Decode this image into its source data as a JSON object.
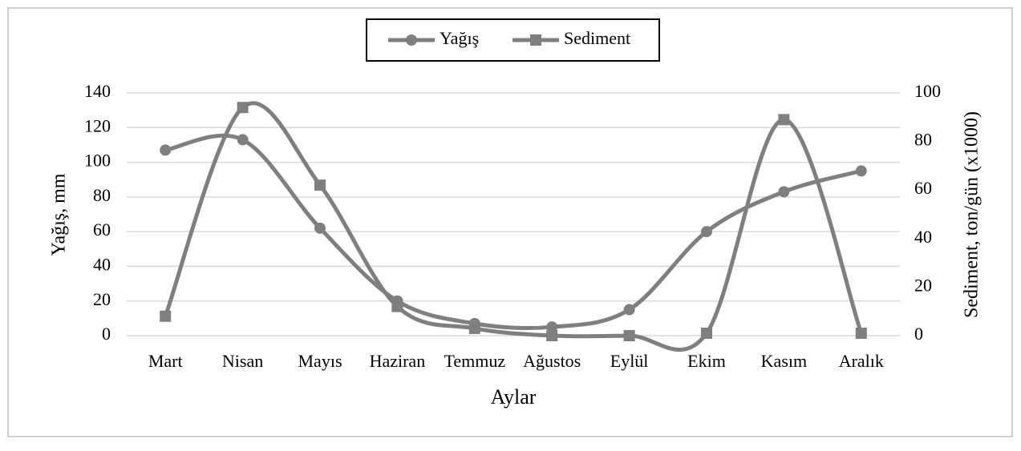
{
  "chart_data": {
    "type": "line",
    "x_label": "Aylar",
    "y_label": "Yağış, mm",
    "y2_label": "Sediment, ton/gün (x1000)",
    "categories": [
      "Mart",
      "Nisan",
      "Mayıs",
      "Haziran",
      "Temmuz",
      "Ağustos",
      "Eylül",
      "Ekim",
      "Kasım",
      "Aralık"
    ],
    "series": [
      {
        "name": "Yağış",
        "color": "#7f7f7f",
        "marker": "circle",
        "values": [
          107,
          113,
          62,
          20,
          7,
          5,
          15,
          60,
          83,
          95
        ]
      },
      {
        "name": "Sediment",
        "color": "#7f7f7f",
        "marker": "square",
        "axis": "y2",
        "values": [
          8,
          94,
          62,
          12,
          3,
          0,
          0,
          1,
          89,
          1
        ]
      }
    ],
    "ylim": [
      0,
      140
    ],
    "yticks": [
      0,
      20,
      40,
      60,
      80,
      100,
      120,
      140
    ],
    "y2lim": [
      0,
      100
    ],
    "y2ticks": [
      0,
      20,
      40,
      60,
      80,
      100
    ],
    "grid": true,
    "legend": "top"
  }
}
